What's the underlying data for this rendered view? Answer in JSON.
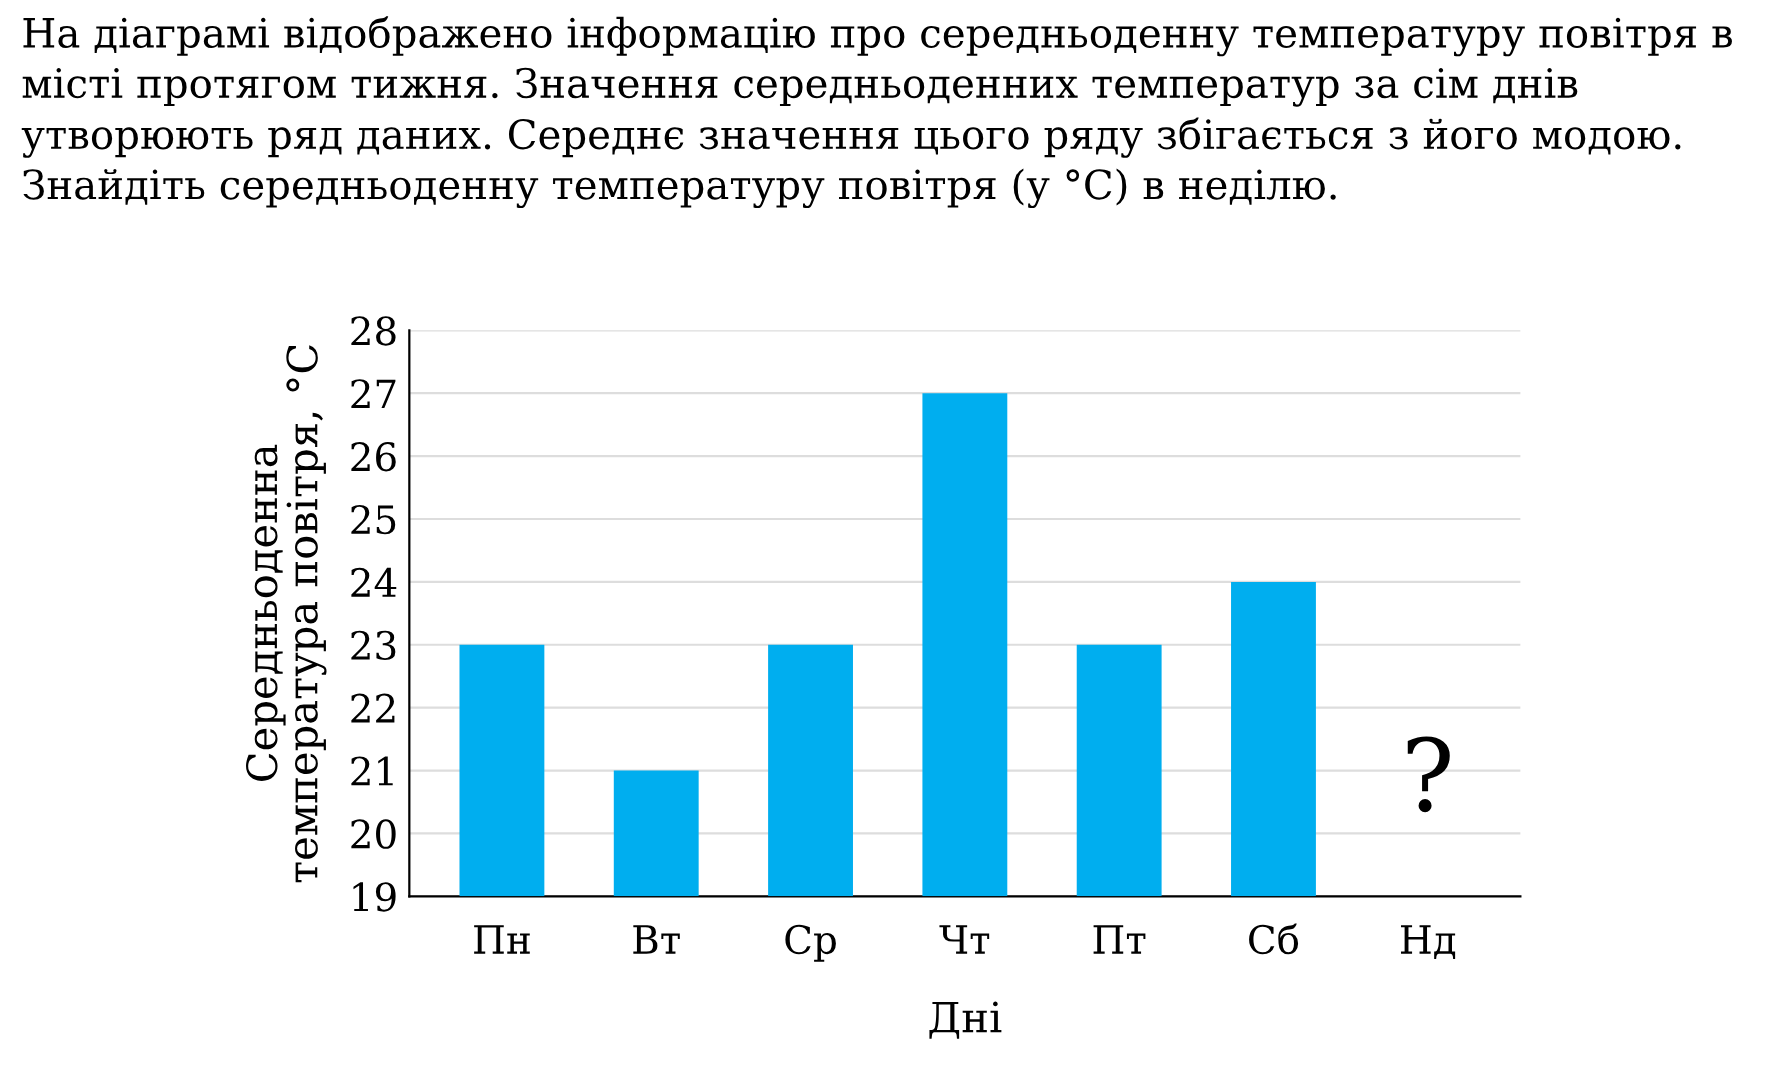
{
  "chart_data": {
    "type": "bar",
    "title": "На діаграмі відображено інформацію про середньоденну температуру повітря в місті протягом тижня. Значення середньоденних температур за сім днів утворюють ряд даних. Середнє значення цього ряду збігається з його модою. Знайдіть середньоденну температуру повітря (у °C) в неділю.",
    "xlabel": "Дні",
    "ylabel": "Середньоденна\nтемпература повітря, °C",
    "categories": [
      "Пн",
      "Вт",
      "Ср",
      "Чт",
      "Пт",
      "Сб",
      "Нд"
    ],
    "values": [
      23,
      21,
      23,
      27,
      23,
      24,
      null
    ],
    "color": "#00aeef",
    "ylim": [
      19,
      28
    ],
    "yticks": [
      19,
      20,
      21,
      22,
      23,
      24,
      25,
      26,
      27,
      28
    ],
    "grid": "y",
    "annotations": [
      "?"
    ]
  }
}
